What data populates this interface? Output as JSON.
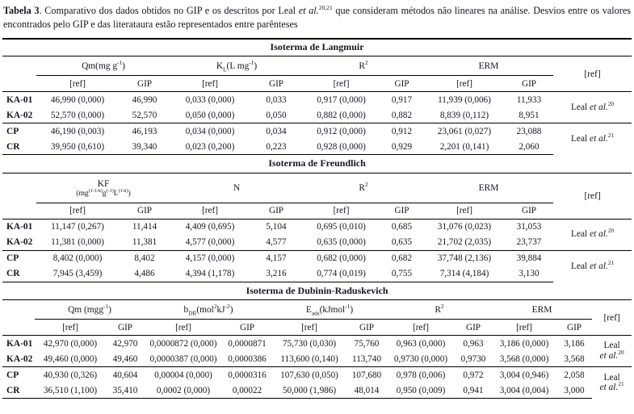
{
  "caption": {
    "segments": [
      {
        "b": "Tabela 3"
      },
      {
        "t": ". Comparativo dos dados obtidos no GIP e os descritos por Leal "
      },
      {
        "i": "et al."
      },
      {
        "sup": "20,21"
      },
      {
        "t": " que consideram métodos não lineares na análise. Desvios entre os valores encontrados pelo GIP e das literataura estão representados entre parênteses"
      }
    ]
  },
  "labels": {
    "ref": "[ref]",
    "gip": "GIP"
  },
  "sections": {
    "langmuir": {
      "title": "Isoterma de Langmuir",
      "groups": {
        "g1": [
          {
            "t": "Qm(mg g"
          },
          {
            "sup": "-1"
          },
          {
            "t": ")"
          }
        ],
        "g2": [
          {
            "t": "K"
          },
          {
            "sub": "L"
          },
          {
            "t": "(L mg"
          },
          {
            "sup": "-1"
          },
          {
            "t": ")"
          }
        ],
        "g3": [
          {
            "t": "R"
          },
          {
            "sup": "2"
          }
        ],
        "g4": [
          {
            "t": "ERM"
          }
        ]
      },
      "rows": [
        {
          "label": "KA-01",
          "cells": [
            "46,990 (0,000)",
            "46,990",
            "0,033 (0,000)",
            "0,033",
            "0,917 (0,000)",
            "0,917",
            "11,939 (0,006)",
            "11,933"
          ]
        },
        {
          "label": "KA-02",
          "cells": [
            "52,570 (0,000)",
            "52,570",
            "0,050 (0,000)",
            "0,050",
            "0,882 (0,000)",
            "0,882",
            "8,839 (0,112)",
            "8,951"
          ]
        },
        {
          "label": "CP",
          "cells": [
            "46,190 (0,003)",
            "46,193",
            "0,034 (0,000)",
            "0,034",
            "0,912 (0,000)",
            "0,912",
            "23,061 (0,027)",
            "23,088"
          ]
        },
        {
          "label": "CR",
          "cells": [
            "39,950 (0,610)",
            "39,340",
            "0,023 (0,200)",
            "0,223",
            "0,928 (0,000)",
            "0,929",
            "2,201 (0,141)",
            "2,060"
          ]
        }
      ],
      "ref_top": [
        {
          "t": "Leal "
        },
        {
          "i": "et al."
        },
        {
          "sup": "20"
        }
      ],
      "ref_bottom": [
        {
          "t": "Leal "
        },
        {
          "i": "et al."
        },
        {
          "sup": "21"
        }
      ]
    },
    "freundlich": {
      "title": "Isoterma de Freundlich",
      "groups": {
        "g1a": [
          {
            "t": "KF"
          }
        ],
        "g1b": [
          {
            "t": "(mg"
          },
          {
            "sup": "(1-1/n)"
          },
          {
            "t": "g"
          },
          {
            "sup": "(-1)"
          },
          {
            "t": "L"
          },
          {
            "sup": "(1/n)"
          },
          {
            "t": ")"
          }
        ],
        "g2": [
          {
            "t": "N"
          }
        ],
        "g3": [
          {
            "t": "R"
          },
          {
            "sup": "2"
          }
        ],
        "g4": [
          {
            "t": "ERM"
          }
        ]
      },
      "rows": [
        {
          "label": "KA-01",
          "cells": [
            "11,147 (0,267)",
            "11,414",
            "4,409 (0,695)",
            "5,104",
            "0,695 (0,010)",
            "0,685",
            "31,076 (0,023)",
            "31,053"
          ]
        },
        {
          "label": "KA-02",
          "cells": [
            "11,381 (0,000)",
            "11,381",
            "4,577 (0,000)",
            "4,577",
            "0,635 (0,000)",
            "0,635",
            "21,702 (2,035)",
            "23,737"
          ]
        },
        {
          "label": "CP",
          "cells": [
            "8,402 (0,000)",
            "8,402",
            "4,157 (0,000)",
            "4,157",
            "0,682 (0,000)",
            "0,682",
            "37,748 (2,136)",
            "39,884"
          ]
        },
        {
          "label": "CR",
          "cells": [
            "7,945 (3,459)",
            "4,486",
            "4,394 (1,178)",
            "3,216",
            "0,774 (0,019)",
            "0,755",
            "7,314 (4,184)",
            "3,130"
          ]
        }
      ],
      "ref_top": [
        {
          "t": "Leal "
        },
        {
          "i": "et al."
        },
        {
          "sup": "20"
        }
      ],
      "ref_bottom": [
        {
          "t": "Leal "
        },
        {
          "i": "et al."
        },
        {
          "sup": "21"
        }
      ]
    },
    "dubinin": {
      "title": "Isoterma de Dubinin-Raduskevich",
      "groups": {
        "g1": [
          {
            "t": "Qm (mgg"
          },
          {
            "sup": "-1"
          },
          {
            "t": ")"
          }
        ],
        "g2": [
          {
            "t": "b"
          },
          {
            "sub": "DR"
          },
          {
            "t": "(mol"
          },
          {
            "sup": "2"
          },
          {
            "t": "kJ"
          },
          {
            "sup": "-2"
          },
          {
            "t": ")"
          }
        ],
        "g3": [
          {
            "t": "E"
          },
          {
            "sub": "ads"
          },
          {
            "t": "(kJmol"
          },
          {
            "sup": "-1"
          },
          {
            "t": ")"
          }
        ],
        "g4": [
          {
            "t": "R"
          },
          {
            "sup": "2"
          }
        ],
        "g5": [
          {
            "t": "ERM"
          }
        ]
      },
      "rows": [
        {
          "label": "KA-01",
          "cells": [
            "42,970 (0,000)",
            "42,970",
            "0,0000872 (0,000)",
            "0,0000871",
            "75,730 (0,030)",
            "75,760",
            "0,963 (0,000)",
            "0,963",
            "3,186 (0,000)",
            "3,186"
          ]
        },
        {
          "label": "KA-02",
          "cells": [
            "49,460 (0,000)",
            "49,460",
            "0,0000387 (0,000)",
            "0,0000386",
            "113,600 (0,140)",
            "113,740",
            "0,9730 (0,000)",
            "0,9730",
            "3,568 (0,000)",
            "3,568"
          ]
        },
        {
          "label": "CP",
          "cells": [
            "40,930 (0,326)",
            "40,604",
            "0,00004 (0,000)",
            "0,0000316",
            "107,630 (0,050)",
            "107,680",
            "0,978 (0,006)",
            "0,972",
            "3,004 (0,946)",
            "2,058"
          ]
        },
        {
          "label": "CR",
          "cells": [
            "36,510 (1,100)",
            "35,410",
            "0,0002 (0,000)",
            "0,00022",
            "50,000 (1,986)",
            "48,014",
            "0,950 (0,009)",
            "0,941",
            "3,004 (0,004)",
            "3,000"
          ]
        }
      ],
      "ref_top": [
        {
          "t": "Leal"
        },
        {
          "br": true
        },
        {
          "i": "et al."
        },
        {
          "sup": "20"
        }
      ],
      "ref_bottom": [
        {
          "t": "Leal"
        },
        {
          "br": true
        },
        {
          "i": "et al."
        },
        {
          "sup": "21"
        }
      ]
    }
  }
}
